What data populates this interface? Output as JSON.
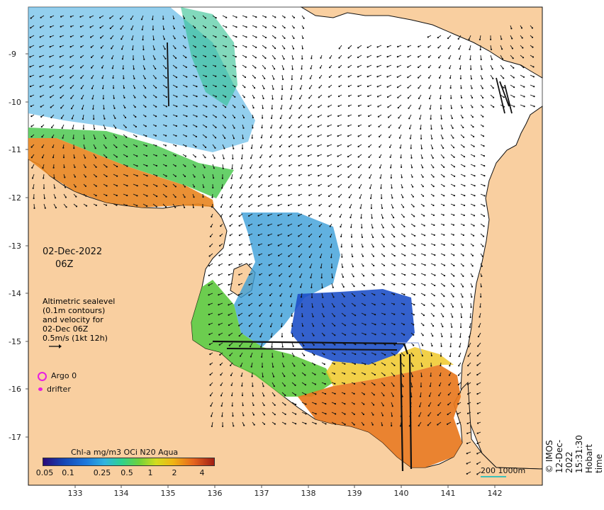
{
  "map": {
    "date": "02-Dec-2022",
    "time": "06Z",
    "credit": "© IMOS 12-Dec-2022 15:31:30 Hobart time",
    "legend": {
      "lines": [
        "Altimetric sealevel",
        "(0.1m contours)",
        "and velocity for",
        "02-Dec 06Z",
        "0.5m/s (1kt 12h)"
      ],
      "argo_label": "Argo 0",
      "drifter_label": "drifter",
      "marker_color": "#e81ee0"
    },
    "colorbar": {
      "title": "Chl-a mg/m3 OCi N20 Aqua",
      "ticks": [
        "0.05",
        "0.1",
        "0.25",
        "0.5",
        "1",
        "2",
        "4"
      ]
    },
    "scale": {
      "label_a": "200",
      "label_b": "1000m"
    },
    "latitude_labels": [
      "-9",
      "-10",
      "-11",
      "-12",
      "-13",
      "-14",
      "-15",
      "-16",
      "-17"
    ],
    "longitude_labels": [
      "133",
      "134",
      "135",
      "136",
      "137",
      "138",
      "139",
      "140",
      "141",
      "142"
    ],
    "colors": {
      "land": "#f9cfa0",
      "ocean": "#ffffff",
      "high_chl": "#e8781e",
      "low_chl": "#1e50c8",
      "track": "#111111"
    }
  }
}
